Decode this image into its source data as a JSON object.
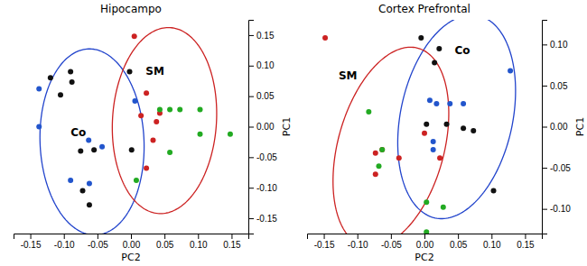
{
  "chart_data": [
    {
      "type": "scatter",
      "title": "Hipocampo",
      "x_label": "PC2",
      "y_label": "PC1",
      "xlim": [
        -0.175,
        0.175
      ],
      "ylim": [
        -0.175,
        0.175
      ],
      "xticks": [
        -0.15,
        {
          "value": -0.1,
          "label": "-0.10"
        },
        -0.05,
        {
          "value": 0,
          "label": "0.00"
        },
        0.05,
        {
          "value": 0.1,
          "label": "0.10"
        },
        0.15
      ],
      "yticks": [
        -0.15,
        {
          "value": -0.1,
          "label": "-0.10"
        },
        -0.05,
        {
          "value": 0,
          "label": "0.00"
        },
        0.05,
        {
          "value": 0.1,
          "label": "0.10"
        },
        0.15
      ],
      "grid": false,
      "series": [
        {
          "color": "#111111",
          "x": [
            -0.12,
            -0.09,
            -0.088,
            -0.105,
            -0.002,
            0.001,
            -0.075,
            -0.055,
            -0.072,
            -0.062
          ],
          "values": [
            0.08,
            0.09,
            0.073,
            0.052,
            0.09,
            -0.038,
            -0.04,
            -0.038,
            -0.105,
            -0.128
          ]
        },
        {
          "color": "#2255cc",
          "x": [
            -0.137,
            -0.137,
            -0.063,
            -0.043,
            -0.09,
            -0.062,
            0.006
          ],
          "values": [
            0.062,
            0.0,
            -0.022,
            -0.033,
            -0.088,
            -0.093,
            0.042
          ]
        },
        {
          "color": "#cc2222",
          "x": [
            0.005,
            0.023,
            0.015,
            0.043,
            0.038,
            0.033,
            0.023
          ],
          "values": [
            0.148,
            0.055,
            0.018,
            0.022,
            0.008,
            -0.022,
            -0.068
          ]
        },
        {
          "color": "#22aa22",
          "x": [
            0.043,
            0.058,
            0.073,
            0.103,
            0.058,
            0.103,
            0.148,
            0.008
          ],
          "values": [
            0.028,
            0.028,
            0.028,
            0.028,
            -0.042,
            -0.012,
            -0.012,
            -0.088
          ]
        }
      ],
      "ellipses": [
        {
          "color": "#2244cc",
          "cx": -0.058,
          "cy": -0.025,
          "width": 0.155,
          "height": 0.305,
          "angle": 2
        },
        {
          "color": "#cc2222",
          "cx": 0.05,
          "cy": 0.01,
          "width": 0.155,
          "height": 0.305,
          "angle": -3
        }
      ],
      "annotations": [
        {
          "text": "Co",
          "x": -0.09,
          "y": -0.015
        },
        {
          "text": "SM",
          "x": 0.022,
          "y": 0.085
        }
      ]
    },
    {
      "type": "scatter",
      "title": "Cortex Prefrontal",
      "x_label": "PC2",
      "y_label": "PC1",
      "xlim": [
        -0.175,
        0.175
      ],
      "ylim": [
        -0.13,
        0.13
      ],
      "xticks": [
        -0.15,
        {
          "value": -0.1,
          "label": "-0.10"
        },
        -0.05,
        {
          "value": 0,
          "label": "0.00"
        },
        0.05,
        {
          "value": 0.1,
          "label": "0.10"
        },
        0.15
      ],
      "yticks": [
        {
          "value": -0.1,
          "label": "-0.10"
        },
        -0.05,
        {
          "value": 0,
          "label": "0.00"
        },
        0.05,
        {
          "value": 0.1,
          "label": "0.10"
        }
      ],
      "grid": false,
      "series": [
        {
          "color": "#111111",
          "x": [
            -0.005,
            0.022,
            0.015,
            0.003,
            0.033,
            0.058,
            0.073,
            0.103
          ],
          "values": [
            0.108,
            0.095,
            0.078,
            0.003,
            0.003,
            -0.002,
            -0.005,
            -0.078
          ]
        },
        {
          "color": "#2255cc",
          "x": [
            0.128,
            0.008,
            0.018,
            0.038,
            0.058,
            0.013,
            0.013
          ],
          "values": [
            0.068,
            0.032,
            0.028,
            0.028,
            0.028,
            -0.018,
            -0.028
          ]
        },
        {
          "color": "#cc2222",
          "x": [
            -0.148,
            -0.073,
            -0.063,
            -0.073,
            -0.038,
            0.0,
            0.023
          ],
          "values": [
            0.108,
            -0.032,
            -0.028,
            -0.058,
            -0.038,
            -0.008,
            -0.038
          ]
        },
        {
          "color": "#22aa22",
          "x": [
            -0.083,
            -0.063,
            -0.068,
            0.003,
            0.003,
            0.028
          ],
          "values": [
            0.018,
            -0.028,
            -0.048,
            -0.092,
            -0.128,
            -0.098
          ]
        }
      ],
      "ellipses": [
        {
          "color": "#2244cc",
          "cx": 0.048,
          "cy": 0.012,
          "width": 0.165,
          "height": 0.255,
          "angle": -18
        },
        {
          "color": "#cc2222",
          "cx": -0.05,
          "cy": -0.025,
          "width": 0.155,
          "height": 0.255,
          "angle": -22
        }
      ],
      "annotations": [
        {
          "text": "Co",
          "x": 0.045,
          "y": 0.088
        },
        {
          "text": "SM",
          "x": -0.128,
          "y": 0.058
        }
      ]
    }
  ]
}
